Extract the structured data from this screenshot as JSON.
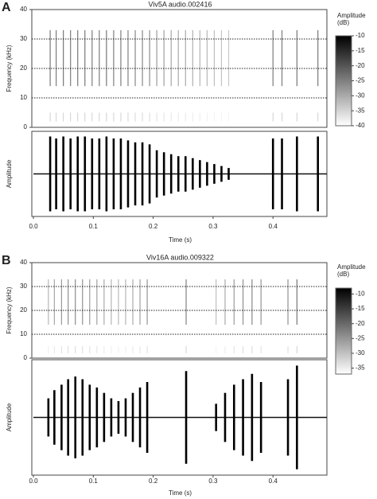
{
  "chart_data": [
    {
      "type": "spectrogram_waveform",
      "panel_label": "A",
      "title": "Viv5A audio.002416",
      "spectrogram": {
        "ylabel": "Frequency (kHz)",
        "ylim": [
          0,
          40
        ],
        "yticks": [
          0,
          10,
          20,
          30,
          40
        ]
      },
      "colorbar": {
        "label": [
          "Amplitude",
          "(dB)"
        ],
        "lim": [
          -40,
          -10
        ],
        "ticks": [
          -10,
          -15,
          -20,
          -25,
          -30,
          -35,
          -40
        ]
      },
      "waveform": {
        "ylabel": "Amplitude",
        "ylim": [
          -1,
          1
        ]
      },
      "xlabel": "Time (s)",
      "xlim": [
        0,
        0.49
      ],
      "xticks": [
        {
          "value": 0,
          "label": "0.0"
        },
        0.1,
        0.2,
        0.3,
        0.4
      ],
      "pulses": {
        "time": [
          0.028,
          0.038,
          0.05,
          0.062,
          0.074,
          0.086,
          0.098,
          0.11,
          0.122,
          0.134,
          0.146,
          0.158,
          0.17,
          0.182,
          0.194,
          0.206,
          0.218,
          0.23,
          0.242,
          0.254,
          0.266,
          0.278,
          0.29,
          0.302,
          0.314,
          0.326,
          0.4,
          0.415,
          0.44,
          0.475
        ],
        "amplitude": [
          0.95,
          0.9,
          0.95,
          0.9,
          0.95,
          0.95,
          0.9,
          0.9,
          0.95,
          0.9,
          0.9,
          0.85,
          0.8,
          0.8,
          0.75,
          0.6,
          0.55,
          0.5,
          0.45,
          0.45,
          0.4,
          0.35,
          0.3,
          0.25,
          0.2,
          0.15,
          0.9,
          0.9,
          0.95,
          0.95
        ]
      }
    },
    {
      "type": "spectrogram_waveform",
      "panel_label": "B",
      "title": "Viv16A audio.009322",
      "spectrogram": {
        "ylabel": "Frequency (kHz)",
        "ylim": [
          0,
          40
        ],
        "yticks": [
          0,
          10,
          20,
          30,
          40
        ]
      },
      "colorbar": {
        "label": [
          "Amplitude",
          "(dB)"
        ],
        "lim": [
          -37,
          -8
        ],
        "ticks": [
          -10,
          -15,
          -20,
          -25,
          -30,
          -35
        ]
      },
      "waveform": {
        "ylabel": "Amplitude",
        "ylim": [
          -1,
          1
        ]
      },
      "xlabel": "Time (s)",
      "xlim": [
        0,
        0.49
      ],
      "xticks": [
        {
          "value": 0,
          "label": "0.0"
        },
        0.1,
        0.2,
        0.3,
        0.4
      ],
      "pulses": {
        "time": [
          0.025,
          0.035,
          0.047,
          0.058,
          0.07,
          0.082,
          0.094,
          0.106,
          0.118,
          0.13,
          0.142,
          0.154,
          0.166,
          0.178,
          0.19,
          0.255,
          0.305,
          0.32,
          0.335,
          0.35,
          0.365,
          0.38,
          0.425,
          0.44
        ],
        "amplitude": [
          0.35,
          0.5,
          0.6,
          0.7,
          0.75,
          0.7,
          0.6,
          0.55,
          0.45,
          0.35,
          0.3,
          0.35,
          0.45,
          0.55,
          0.65,
          0.85,
          0.25,
          0.45,
          0.6,
          0.7,
          0.8,
          0.65,
          0.7,
          0.95
        ]
      }
    }
  ]
}
